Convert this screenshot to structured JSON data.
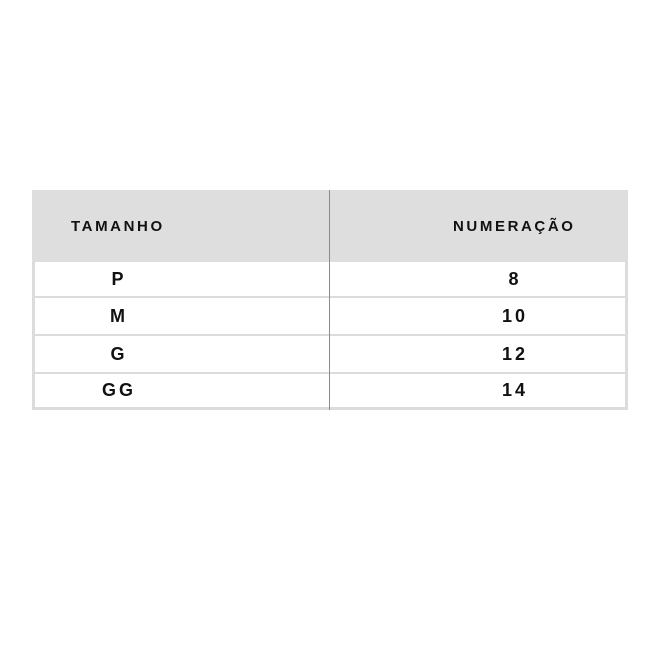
{
  "table": {
    "headers": [
      "TAMANHO",
      "NUMERAÇÃO"
    ],
    "rows": [
      {
        "size": "P",
        "number": "8"
      },
      {
        "size": "M",
        "number": "10"
      },
      {
        "size": "G",
        "number": "12"
      },
      {
        "size": "GG",
        "number": "14"
      }
    ]
  }
}
